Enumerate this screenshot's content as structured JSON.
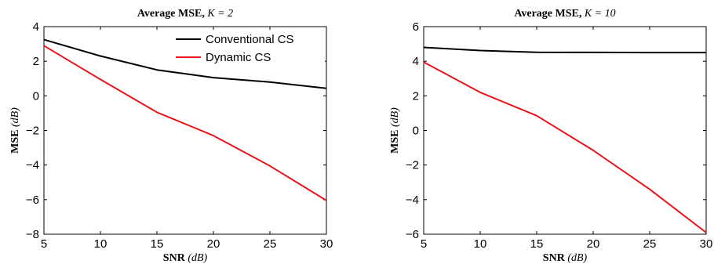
{
  "chart_data": [
    {
      "type": "line",
      "title": "Average MSE, ",
      "title_math": "K = 2",
      "xlabel": "SNR ",
      "xlabel_unit": "(dB)",
      "ylabel": "MSE ",
      "ylabel_unit": "(dB)",
      "xlim": [
        5,
        30
      ],
      "ylim": [
        -8,
        4
      ],
      "xticks": [
        "5",
        "10",
        "15",
        "20",
        "25",
        "30"
      ],
      "yticks": [
        "4",
        "2",
        "0",
        "−2",
        "−4",
        "−6",
        "−8"
      ],
      "x": [
        5,
        10,
        15,
        20,
        25,
        30
      ],
      "legend_position": "top-right",
      "series": [
        {
          "name": "Conventional CS",
          "color": "#000000",
          "values": [
            3.25,
            2.3,
            1.5,
            1.05,
            0.8,
            0.43
          ]
        },
        {
          "name": "Dynamic CS",
          "color": "#e8141a",
          "values": [
            2.9,
            0.95,
            -0.95,
            -2.3,
            -4.05,
            -6.05
          ]
        }
      ]
    },
    {
      "type": "line",
      "title": "Average MSE, ",
      "title_math": "K = 10",
      "xlabel": "SNR ",
      "xlabel_unit": "(dB)",
      "ylabel": "MSE ",
      "ylabel_unit": "(dB)",
      "xlim": [
        5,
        30
      ],
      "ylim": [
        -6,
        6
      ],
      "xticks": [
        "5",
        "10",
        "15",
        "20",
        "25",
        "30"
      ],
      "yticks": [
        "6",
        "4",
        "2",
        "0",
        "−2",
        "−4",
        "−6"
      ],
      "x": [
        5,
        10,
        15,
        20,
        25,
        30
      ],
      "series": [
        {
          "color": "#000000",
          "values": [
            4.8,
            4.62,
            4.52,
            4.51,
            4.5,
            4.5
          ]
        },
        {
          "color": "#e8141a",
          "values": [
            3.95,
            2.2,
            0.85,
            -1.15,
            -3.4,
            -5.9
          ]
        }
      ]
    }
  ]
}
